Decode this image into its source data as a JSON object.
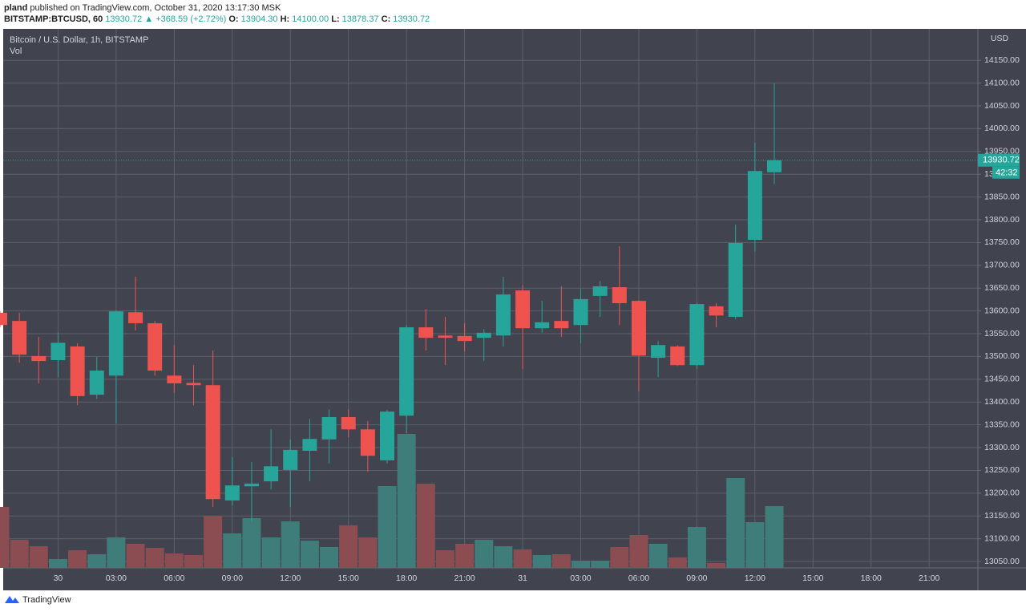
{
  "header": {
    "author": "pland",
    "published": "published on TradingView.com, October 31, 2020 13:17:30 MSK",
    "symbol": "BITSTAMP:BTCUSD, 60",
    "last": "13930.72",
    "change": "▲ +368.59 (+2.72%)",
    "o_label": "O:",
    "o": "13904.30",
    "h_label": "H:",
    "h": "14100.00",
    "l_label": "L:",
    "l": "13878.37",
    "c_label": "C:",
    "c": "13930.72"
  },
  "footer": {
    "brand": "TradingView"
  },
  "chart_data": {
    "type": "candlestick",
    "title": "Bitcoin / U.S. Dollar, 1h, BITSTAMP",
    "volume_label": "Vol",
    "currency": "USD",
    "up_color": "#26a69a",
    "down_color": "#ef5350",
    "up_volume_color": "#3e7d79",
    "down_volume_color": "#8b4d51",
    "grid": true,
    "categories": [
      null,
      null,
      null,
      "30",
      null,
      null,
      "03:00",
      null,
      null,
      "06:00",
      null,
      null,
      "09:00",
      null,
      null,
      "12:00",
      null,
      null,
      "15:00",
      null,
      null,
      "18:00",
      null,
      null,
      "21:00",
      null,
      null,
      "31",
      null,
      null,
      "03:00",
      null,
      null,
      "06:00",
      null,
      null,
      "09:00",
      null,
      null,
      "12:00",
      null,
      null,
      "15:00",
      null,
      null,
      "18:00",
      null,
      null,
      "21:00",
      null,
      null
    ],
    "open": [
      13596,
      13578,
      13501,
      13492,
      13522,
      13416,
      13458,
      13597,
      13573,
      13458,
      13442,
      13437,
      13184,
      13215,
      13226,
      13251,
      13293,
      13318,
      13367,
      13340,
      13272,
      13370,
      13564,
      13546,
      13545,
      13541,
      13546,
      13645,
      13562,
      13578,
      13569,
      13633,
      13652,
      13622,
      13497,
      13522,
      13481,
      13610,
      13587,
      13756,
      13904.3,
      null,
      null,
      null,
      null,
      null,
      null,
      null,
      null,
      null,
      null
    ],
    "high": [
      13599,
      13596,
      13543,
      13553,
      13529,
      13499,
      13601,
      13675,
      13578,
      13525,
      13481,
      13513,
      13279,
      13268,
      13340,
      13318,
      13363,
      13384,
      13384,
      13358,
      13383,
      13569,
      13604,
      13587,
      13573,
      13560,
      13675,
      13657,
      13622,
      13654,
      13648,
      13666,
      13742,
      13624,
      13534,
      13525,
      13618,
      13617,
      13789,
      13969,
      14100.0,
      null,
      null,
      null,
      null,
      null,
      null,
      null,
      null,
      null,
      null
    ],
    "low": [
      13564,
      13486,
      13441,
      13455,
      13393,
      13407,
      13353,
      13557,
      13458,
      13420,
      13393,
      13170,
      13173,
      13138,
      13208,
      13170,
      13226,
      13265,
      13323,
      13247,
      13265,
      13332,
      13513,
      13481,
      13511,
      13490,
      13522,
      13472,
      13552,
      13543,
      13529,
      13587,
      13569,
      13423,
      13455,
      13479,
      13472,
      13564,
      13582,
      13731,
      13878.37,
      null,
      null,
      null,
      null,
      null,
      null,
      null,
      null,
      null,
      null
    ],
    "close": [
      13569,
      13504,
      13490,
      13530,
      13413,
      13469,
      13599,
      13573,
      13469,
      13441,
      13437,
      13187,
      13217,
      13221,
      13259,
      13295,
      13319,
      13367,
      13340,
      13282,
      13379,
      13564,
      13541,
      13541,
      13534,
      13552,
      13636,
      13562,
      13575,
      13562,
      13626,
      13654,
      13617,
      13502,
      13525,
      13481,
      13615,
      13590,
      13749,
      13907,
      13930.72,
      null,
      null,
      null,
      null,
      null,
      null,
      null,
      null,
      null,
      null
    ],
    "volume": [
      76,
      35,
      27,
      11,
      22,
      17,
      38,
      30,
      25,
      18,
      16,
      65,
      43,
      62,
      38,
      58,
      34,
      26,
      53,
      38,
      102,
      167,
      105,
      22,
      30,
      35,
      27,
      23,
      16,
      17,
      9,
      9,
      26,
      41,
      30,
      13,
      51,
      6,
      112,
      57,
      77,
      null,
      null,
      null,
      null,
      null,
      null,
      null,
      null,
      null,
      null
    ],
    "last_price_label": "13930.72",
    "countdown": "42:32",
    "ylim": [
      13036,
      14219
    ],
    "yticks": [
      {
        "value": 14150,
        "label": "14150.00"
      },
      {
        "value": 14100,
        "label": "14100.00"
      },
      {
        "value": 14050,
        "label": "14050.00"
      },
      {
        "value": 14000,
        "label": "14000.00"
      },
      {
        "value": 13950,
        "label": "13950.00"
      },
      {
        "value": 13900,
        "label": "13900.00"
      },
      {
        "value": 13850,
        "label": "13850.00"
      },
      {
        "value": 13800,
        "label": "13800.00"
      },
      {
        "value": 13750,
        "label": "13750.00"
      },
      {
        "value": 13700,
        "label": "13700.00"
      },
      {
        "value": 13650,
        "label": "13650.00"
      },
      {
        "value": 13600,
        "label": "13600.00"
      },
      {
        "value": 13550,
        "label": "13550.00"
      },
      {
        "value": 13500,
        "label": "13500.00"
      },
      {
        "value": 13450,
        "label": "13450.00"
      },
      {
        "value": 13400,
        "label": "13400.00"
      },
      {
        "value": 13350,
        "label": "13350.00"
      },
      {
        "value": 13300,
        "label": "13300.00"
      },
      {
        "value": 13250,
        "label": "13250.00"
      },
      {
        "value": 13200,
        "label": "13200.00"
      },
      {
        "value": 13150,
        "label": "13150.00"
      },
      {
        "value": 13100,
        "label": "13100.00"
      },
      {
        "value": 13050,
        "label": "13050.00"
      }
    ]
  }
}
